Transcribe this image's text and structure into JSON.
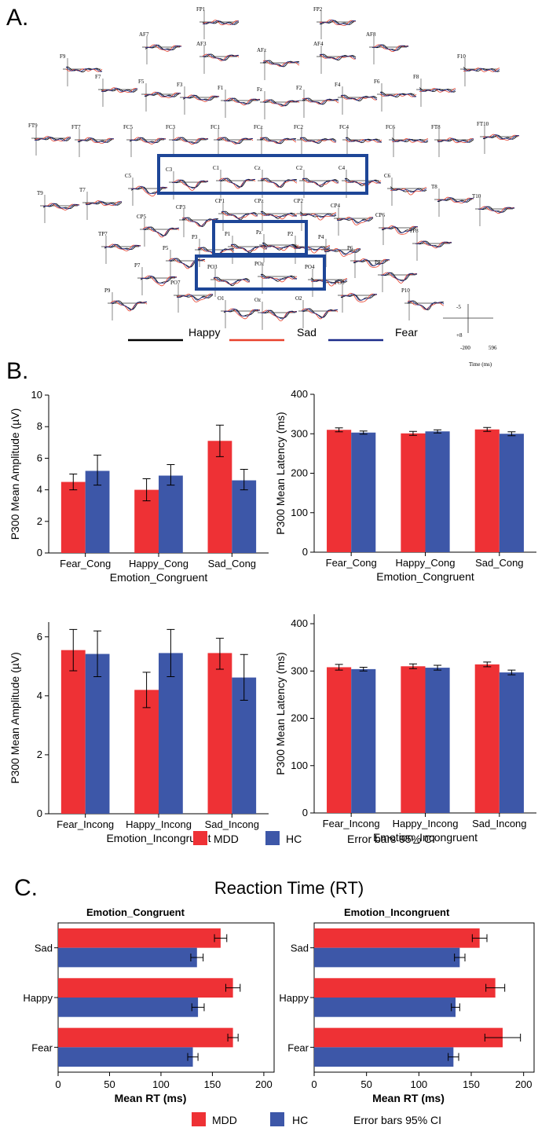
{
  "panels": {
    "a": "A.",
    "b": "B.",
    "c": "C."
  },
  "colors": {
    "mdd": "#ee3135",
    "hc": "#3d57a8",
    "happy": "#000000",
    "sad": "#e8412b",
    "fear": "#1c2b8a",
    "roi": "#1e4697"
  },
  "topo": {
    "legend": [
      {
        "label": "Happy",
        "color": "#000000"
      },
      {
        "label": "Sad",
        "color": "#e8412b"
      },
      {
        "label": "Fear",
        "color": "#1c2b8a"
      }
    ],
    "scale": {
      "top": "-5",
      "bottom": "+8",
      "left": "-200",
      "right": "596",
      "caption": "Time (ms)"
    },
    "electrodes": [
      "FP1",
      "FP2",
      "AF7",
      "AF8",
      "AF3",
      "AFz",
      "AF4",
      "F9",
      "F10",
      "F7",
      "F5",
      "F3",
      "F1",
      "Fz",
      "F2",
      "F4",
      "F6",
      "F8",
      "FT9",
      "FT7",
      "FC5",
      "FC3",
      "FC1",
      "FCz",
      "FC2",
      "FC4",
      "FC6",
      "FT8",
      "FT10",
      "C5",
      "C3",
      "C1",
      "Cz",
      "C2",
      "C4",
      "C6",
      "T7",
      "T8",
      "T9",
      "T10",
      "CP5",
      "CP3",
      "CP1",
      "CPz",
      "CP2",
      "CP4",
      "CP6",
      "TP7",
      "TP8",
      "P5",
      "P3",
      "P1",
      "Pz",
      "P2",
      "P4",
      "P6",
      "P7",
      "P8",
      "P9",
      "P10",
      "PO3",
      "POz",
      "PO4",
      "PO7",
      "PO8",
      "O1",
      "Oz",
      "O2"
    ]
  },
  "legend_b": {
    "mdd": "MDD",
    "hc": "HC",
    "note": "Error bars 95% CI"
  },
  "legend_c": {
    "mdd": "MDD",
    "hc": "HC",
    "note": "Error bars 95% CI"
  },
  "c_title": "Reaction Time (RT)",
  "chart_data": [
    {
      "id": "amp_cong",
      "type": "bar",
      "title": "",
      "xlabel": "Emotion_Congruent",
      "ylabel": "P300 Mean Amplitude (µV)",
      "categories": [
        "Fear_Cong",
        "Happy_Cong",
        "Sad_Cong"
      ],
      "ylim": [
        0,
        10
      ],
      "yticks": [
        0,
        2,
        4,
        6,
        8,
        10
      ],
      "series": [
        {
          "name": "MDD",
          "values": [
            4.5,
            4.0,
            7.1
          ],
          "ci_low": [
            4.0,
            3.3,
            6.1
          ],
          "ci_high": [
            5.0,
            4.7,
            8.1
          ]
        },
        {
          "name": "HC",
          "values": [
            5.2,
            4.9,
            4.6
          ],
          "ci_low": [
            4.3,
            4.3,
            4.0
          ],
          "ci_high": [
            6.2,
            5.6,
            5.3
          ]
        }
      ]
    },
    {
      "id": "lat_cong",
      "type": "bar",
      "title": "",
      "xlabel": "Emotion_Congruent",
      "ylabel": "P300 Mean Latency (ms)",
      "categories": [
        "Fear_Cong",
        "Happy_Cong",
        "Sad_Cong"
      ],
      "ylim": [
        0,
        400
      ],
      "yticks": [
        0,
        100,
        200,
        300,
        400
      ],
      "series": [
        {
          "name": "MDD",
          "values": [
            310,
            301,
            311
          ],
          "ci_low": [
            305,
            296,
            306
          ],
          "ci_high": [
            315,
            306,
            316
          ]
        },
        {
          "name": "HC",
          "values": [
            303,
            306,
            300
          ],
          "ci_low": [
            299,
            302,
            295
          ],
          "ci_high": [
            307,
            310,
            305
          ]
        }
      ]
    },
    {
      "id": "amp_incong",
      "type": "bar",
      "title": "",
      "xlabel": "Emotion_Incongruent",
      "ylabel": "P300 Mean Amplitude (µV)",
      "categories": [
        "Fear_Incong",
        "Happy_Incong",
        "Sad_Incong"
      ],
      "ylim": [
        0,
        6.5
      ],
      "yticks": [
        0,
        2,
        4,
        6
      ],
      "series": [
        {
          "name": "MDD",
          "values": [
            5.55,
            4.2,
            5.45
          ],
          "ci_low": [
            4.85,
            3.6,
            4.9
          ],
          "ci_high": [
            6.25,
            4.8,
            5.95
          ]
        },
        {
          "name": "HC",
          "values": [
            5.42,
            5.45,
            4.62
          ],
          "ci_low": [
            4.65,
            4.65,
            3.85
          ],
          "ci_high": [
            6.2,
            6.25,
            5.4
          ]
        }
      ]
    },
    {
      "id": "lat_incong",
      "type": "bar",
      "title": "",
      "xlabel": "Emotion_Incongruent",
      "ylabel": "P300 Mean Latency (ms)",
      "categories": [
        "Fear_Incong",
        "Happy_Incong",
        "Sad_Incong"
      ],
      "ylim": [
        0,
        420
      ],
      "yticks": [
        0,
        100,
        200,
        300,
        400
      ],
      "series": [
        {
          "name": "MDD",
          "values": [
            308,
            310,
            314
          ],
          "ci_low": [
            302,
            305,
            309
          ],
          "ci_high": [
            314,
            315,
            319
          ]
        },
        {
          "name": "HC",
          "values": [
            304,
            307,
            297
          ],
          "ci_low": [
            300,
            302,
            292
          ],
          "ci_high": [
            308,
            312,
            302
          ]
        }
      ]
    },
    {
      "id": "rt_cong",
      "type": "bar",
      "orientation": "horizontal",
      "title": "Emotion_Congruent",
      "xlabel": "Mean RT (ms)",
      "ylabel": "",
      "categories": [
        "Sad",
        "Happy",
        "Fear"
      ],
      "xlim": [
        0,
        210
      ],
      "xticks": [
        0,
        50,
        100,
        150,
        200
      ],
      "series": [
        {
          "name": "MDD",
          "values": [
            158,
            170,
            170
          ],
          "ci_low": [
            152,
            163,
            165
          ],
          "ci_high": [
            164,
            177,
            175
          ]
        },
        {
          "name": "HC",
          "values": [
            135,
            136,
            131
          ],
          "ci_low": [
            129,
            130,
            126
          ],
          "ci_high": [
            141,
            142,
            136
          ]
        }
      ]
    },
    {
      "id": "rt_incong",
      "type": "bar",
      "orientation": "horizontal",
      "title": "Emotion_Incongruent",
      "xlabel": "Mean RT (ms)",
      "ylabel": "",
      "categories": [
        "Sad",
        "Happy",
        "Fear"
      ],
      "xlim": [
        0,
        210
      ],
      "xticks": [
        0,
        50,
        100,
        150,
        200
      ],
      "series": [
        {
          "name": "MDD",
          "values": [
            158,
            173,
            180
          ],
          "ci_low": [
            151,
            164,
            163
          ],
          "ci_high": [
            165,
            182,
            197
          ]
        },
        {
          "name": "HC",
          "values": [
            139,
            135,
            133
          ],
          "ci_low": [
            134,
            131,
            128
          ],
          "ci_high": [
            144,
            139,
            138
          ]
        }
      ]
    }
  ]
}
